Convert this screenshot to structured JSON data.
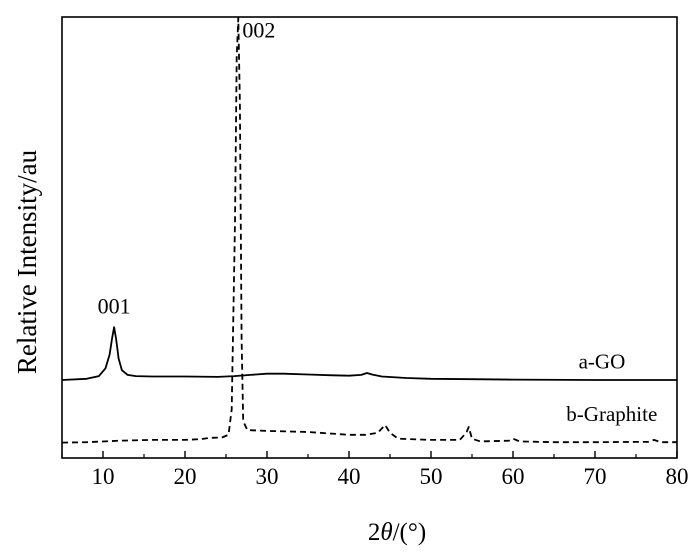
{
  "chart_data": {
    "type": "line",
    "xlabel_prefix": "2",
    "xlabel_symbol": "θ",
    "xlabel_suffix": "/(°)",
    "ylabel": "Relative Intensity/au",
    "xlim": [
      5,
      80
    ],
    "x_ticks": [
      10,
      20,
      30,
      40,
      50,
      60,
      70,
      80
    ],
    "y_ticks_shown": false,
    "grid": false,
    "series": [
      {
        "name": "a-GO",
        "style": "solid",
        "color": "#000000",
        "points": [
          [
            5,
            0.095
          ],
          [
            8,
            0.098
          ],
          [
            9.5,
            0.105
          ],
          [
            10.3,
            0.125
          ],
          [
            10.8,
            0.16
          ],
          [
            11.1,
            0.2
          ],
          [
            11.35,
            0.23
          ],
          [
            11.6,
            0.2
          ],
          [
            11.9,
            0.15
          ],
          [
            12.3,
            0.12
          ],
          [
            13,
            0.108
          ],
          [
            14,
            0.105
          ],
          [
            16,
            0.104
          ],
          [
            20,
            0.104
          ],
          [
            24,
            0.103
          ],
          [
            26,
            0.105
          ],
          [
            28,
            0.108
          ],
          [
            30,
            0.111
          ],
          [
            32,
            0.111
          ],
          [
            35,
            0.109
          ],
          [
            38,
            0.107
          ],
          [
            40,
            0.106
          ],
          [
            41.5,
            0.108
          ],
          [
            42.2,
            0.113
          ],
          [
            42.8,
            0.109
          ],
          [
            44,
            0.104
          ],
          [
            47,
            0.1
          ],
          [
            50,
            0.098
          ],
          [
            55,
            0.097
          ],
          [
            60,
            0.096
          ],
          [
            70,
            0.095
          ],
          [
            80,
            0.095
          ]
        ]
      },
      {
        "name": "b-Graphite",
        "style": "dashed",
        "color": "#000000",
        "points": [
          [
            5,
            -0.065
          ],
          [
            8,
            -0.064
          ],
          [
            12,
            -0.06
          ],
          [
            16,
            -0.058
          ],
          [
            20,
            -0.058
          ],
          [
            22,
            -0.056
          ],
          [
            23,
            -0.053
          ],
          [
            24.5,
            -0.052
          ],
          [
            25.3,
            -0.045
          ],
          [
            25.7,
            0.02
          ],
          [
            26.1,
            0.5
          ],
          [
            26.3,
            0.92
          ],
          [
            26.5,
            1.02
          ],
          [
            26.7,
            0.8
          ],
          [
            26.9,
            0.2
          ],
          [
            27.1,
            -0.01
          ],
          [
            27.6,
            -0.033
          ],
          [
            30,
            -0.035
          ],
          [
            35,
            -0.038
          ],
          [
            40,
            -0.045
          ],
          [
            42,
            -0.045
          ],
          [
            43.5,
            -0.04
          ],
          [
            44.4,
            -0.02
          ],
          [
            45,
            -0.04
          ],
          [
            46,
            -0.055
          ],
          [
            50,
            -0.058
          ],
          [
            53.5,
            -0.058
          ],
          [
            54.3,
            -0.04
          ],
          [
            54.6,
            -0.025
          ],
          [
            55,
            -0.055
          ],
          [
            56,
            -0.062
          ],
          [
            59.5,
            -0.06
          ],
          [
            60,
            -0.055
          ],
          [
            60.8,
            -0.062
          ],
          [
            65,
            -0.064
          ],
          [
            70,
            -0.064
          ],
          [
            76.5,
            -0.063
          ],
          [
            77.2,
            -0.058
          ],
          [
            78,
            -0.064
          ],
          [
            80,
            -0.064
          ]
        ]
      }
    ],
    "annotations": [
      {
        "text": "001",
        "x": 11.35,
        "y": 0.265
      },
      {
        "text": "002",
        "x": 27.0,
        "y": 0.97
      }
    ],
    "series_labels": [
      {
        "text": "a-GO",
        "x": 68,
        "y": 0.125
      },
      {
        "text": "b-Graphite",
        "x": 66.5,
        "y": -0.01
      }
    ]
  }
}
